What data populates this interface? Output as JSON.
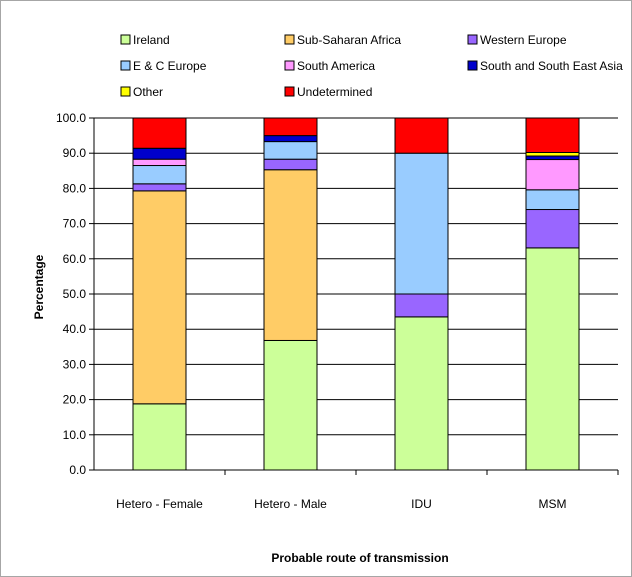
{
  "chart_data": {
    "type": "bar",
    "stacked": true,
    "title": "",
    "xlabel": "Probable route of transmission",
    "ylabel": "Percentage",
    "ylim": [
      0,
      100
    ],
    "yticks": [
      "0.0",
      "10.0",
      "20.0",
      "30.0",
      "40.0",
      "50.0",
      "60.0",
      "70.0",
      "80.0",
      "90.0",
      "100.0"
    ],
    "grid": true,
    "legend_position": "top",
    "categories": [
      "Hetero - Female",
      "Hetero - Male",
      "IDU",
      "MSM"
    ],
    "series": [
      {
        "name": "Ireland",
        "color": "#ccff99",
        "values": [
          18.8,
          36.8,
          43.5,
          63.1
        ]
      },
      {
        "name": "Sub-Saharan Africa",
        "color": "#ffcc66",
        "values": [
          60.5,
          48.5,
          0.0,
          0.0
        ]
      },
      {
        "name": "Western Europe",
        "color": "#9966ff",
        "values": [
          2.0,
          3.0,
          6.5,
          10.9
        ]
      },
      {
        "name": "E & C Europe",
        "color": "#99ccff",
        "values": [
          5.2,
          5.0,
          40.0,
          5.6
        ]
      },
      {
        "name": "South America",
        "color": "#ff99ff",
        "values": [
          1.8,
          0.0,
          0.0,
          8.6
        ]
      },
      {
        "name": "South and South East Asia",
        "color": "#0000cc",
        "values": [
          3.1,
          1.7,
          0.0,
          1.0
        ]
      },
      {
        "name": "Other",
        "color": "#ffff00",
        "values": [
          0.0,
          0.0,
          0.0,
          1.0
        ]
      },
      {
        "name": "Undetermined",
        "color": "#ff0000",
        "values": [
          8.6,
          5.0,
          10.0,
          9.8
        ]
      }
    ]
  }
}
